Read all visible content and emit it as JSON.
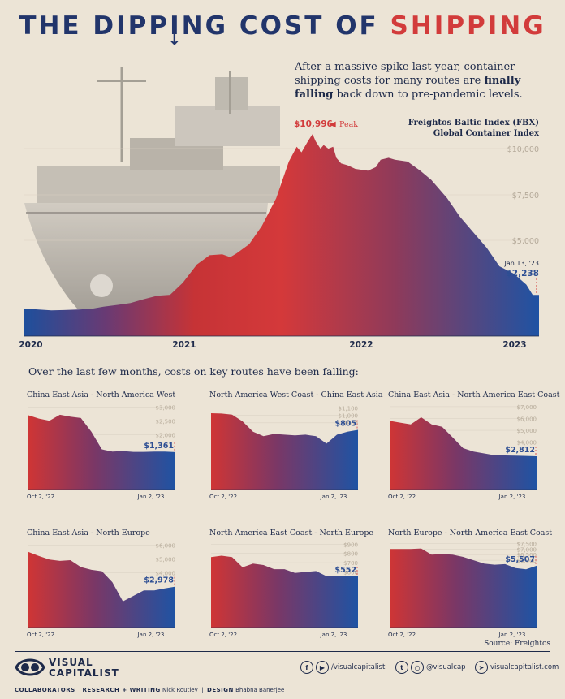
{
  "title": {
    "part1": "THE DIPP",
    "arrow_letter": "I",
    "part2": "NG COST OF ",
    "highlight": "SHIPPING"
  },
  "intro": {
    "pre": "After a massive spike last year, container shipping costs for many routes are ",
    "bold": "finally falling",
    "post": " back down to pre-pandemic levels."
  },
  "colors": {
    "red": "#d23b3b",
    "navy": "#22356b",
    "blue": "#1f4f9a",
    "background": "#ece4d6"
  },
  "main_chart": {
    "legend_line1": "Freightos Baltic Index (FBX)",
    "legend_line2": "Global Container Index",
    "peak_value": "$10,996",
    "peak_label": "Peak",
    "end_date": "Jan 13, '23",
    "end_value": "$2,238",
    "y_ticks": [
      "$10,000",
      "$7,500",
      "$5,000"
    ],
    "x_ticks": [
      "2020",
      "2021",
      "2022",
      "2023"
    ]
  },
  "section_heading": "Over the last few months, costs on key routes have been falling:",
  "chart_data": [
    {
      "type": "area",
      "title": "Freightos Baltic Index (FBX) Global Container Index",
      "x": [
        2019.83,
        2019.92,
        2020.0,
        2020.08,
        2020.17,
        2020.25,
        2020.33,
        2020.42,
        2020.5,
        2020.58,
        2020.67,
        2020.75,
        2020.83,
        2020.92,
        2021.0,
        2021.08,
        2021.13,
        2021.17,
        2021.25,
        2021.33,
        2021.42,
        2021.5,
        2021.55,
        2021.58,
        2021.62,
        2021.65,
        2021.67,
        2021.7,
        2021.72,
        2021.75,
        2021.78,
        2021.8,
        2021.83,
        2021.87,
        2021.92,
        2022.0,
        2022.05,
        2022.08,
        2022.13,
        2022.17,
        2022.25,
        2022.33,
        2022.4,
        2022.45,
        2022.5,
        2022.58,
        2022.67,
        2022.75,
        2022.83,
        2022.92,
        2023.0,
        2023.04,
        2023.08
      ],
      "y": [
        1500,
        1450,
        1400,
        1420,
        1450,
        1480,
        1600,
        1700,
        1800,
        2000,
        2200,
        2250,
        2900,
        3900,
        4400,
        4450,
        4300,
        4500,
        5000,
        6000,
        7500,
        9500,
        10300,
        10000,
        10600,
        10996,
        10600,
        10200,
        10400,
        10200,
        10300,
        9700,
        9400,
        9300,
        9100,
        9000,
        9200,
        9600,
        9700,
        9600,
        9500,
        9000,
        8500,
        8000,
        7500,
        6500,
        5600,
        4800,
        3800,
        3400,
        2800,
        2238,
        2238
      ],
      "x_ticks": [
        "2020",
        "2021",
        "2022",
        "2023"
      ],
      "y_ticks": [
        "$10,000",
        "$7,500",
        "$5,000"
      ],
      "xlim": [
        2019.83,
        2023.08
      ],
      "ylim": [
        0,
        11000
      ],
      "annotations": [
        {
          "label": "$10,996 Peak",
          "x": 2021.65,
          "y": 10996
        },
        {
          "label": "Jan 13, '23 $2,238",
          "x": 2023.04,
          "y": 2238
        }
      ]
    },
    {
      "type": "area",
      "title": "China East Asia - North America West",
      "ylim": [
        0,
        3100
      ],
      "y_ticks": [
        "$3,000",
        "$2,500",
        "$2,000"
      ],
      "x_ticks": [
        "Oct 2, '22",
        "Jan 2, '23"
      ],
      "end_label": "$1,361",
      "y": [
        2700,
        2580,
        2500,
        2720,
        2650,
        2600,
        2100,
        1460,
        1380,
        1400,
        1370,
        1370,
        1380,
        1380,
        1361
      ]
    },
    {
      "type": "area",
      "title": "North America West Coast - China East Asia",
      "ylim": [
        0,
        1150
      ],
      "y_ticks": [
        "$1,100",
        "$1,000",
        "$900"
      ],
      "x_ticks": [
        "Oct 2, '22",
        "Jan 2, '23"
      ],
      "end_label": "$805",
      "y": [
        1030,
        1025,
        1010,
        920,
        780,
        720,
        750,
        740,
        730,
        740,
        720,
        620,
        740,
        780,
        805
      ]
    },
    {
      "type": "area",
      "title": "China East Asia - North America East Coast",
      "ylim": [
        0,
        7200
      ],
      "y_ticks": [
        "$7,000",
        "$6,000",
        "$5,000",
        "$4,000"
      ],
      "x_ticks": [
        "Oct 2, '22",
        "Jan 2, '23"
      ],
      "end_label": "$2,812",
      "y": [
        5800,
        5650,
        5500,
        6100,
        5500,
        5300,
        4400,
        3500,
        3200,
        3050,
        2900,
        2880,
        2860,
        2840,
        2812
      ]
    },
    {
      "type": "area",
      "title": "China East Asia - North Europe",
      "ylim": [
        0,
        6200
      ],
      "y_ticks": [
        "$6,000",
        "$5,000",
        "$4,000"
      ],
      "x_ticks": [
        "Oct 2, '22",
        "Jan 2, '23"
      ],
      "end_label": "$2,978",
      "y": [
        5500,
        5200,
        4950,
        4850,
        4900,
        4400,
        4200,
        4100,
        3300,
        1900,
        2300,
        2700,
        2700,
        2850,
        2978
      ]
    },
    {
      "type": "area",
      "title": "North America East Coast - North Europe",
      "ylim": [
        0,
        920
      ],
      "y_ticks": [
        "$900",
        "$800",
        "$700",
        "$600"
      ],
      "x_ticks": [
        "Oct 2, '22",
        "Jan 2, '23"
      ],
      "end_label": "$552",
      "y": [
        760,
        775,
        760,
        650,
        690,
        675,
        630,
        630,
        590,
        600,
        610,
        555,
        555,
        555,
        552
      ]
    },
    {
      "type": "area",
      "title": "North Europe - North America East Coast",
      "ylim": [
        0,
        7600
      ],
      "y_ticks": [
        "$7,500",
        "$7,000",
        "$6,500",
        "$6,000"
      ],
      "x_ticks": [
        "Oct 2, '22",
        "Jan 2, '23"
      ],
      "end_label": "$5,507",
      "y": [
        7000,
        7000,
        7000,
        7050,
        6500,
        6550,
        6500,
        6300,
        6000,
        5700,
        5600,
        5650,
        5300,
        5200,
        5507
      ]
    }
  ],
  "footer": {
    "source": "Source: Freightos",
    "brand_line1": "VISUAL",
    "brand_line2": "CAPITALIST",
    "social1": "/visualcapitalist",
    "social2": "@visualcap",
    "social3": "visualcapitalist.com",
    "collaborators": "COLLABORATORS",
    "research_label": "RESEARCH + WRITING",
    "research_name": "Nick Routley",
    "design_label": "DESIGN",
    "design_name": "Bhabna Banerjee"
  }
}
